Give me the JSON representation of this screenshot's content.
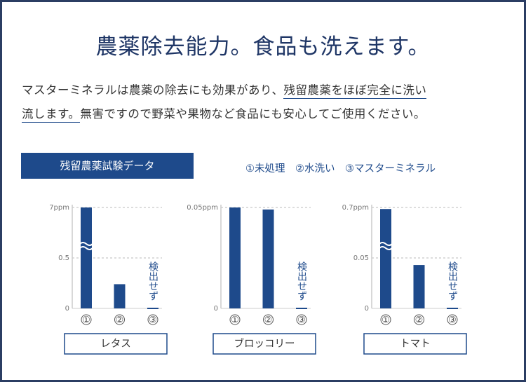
{
  "title": "農薬除去能力。食品も洗えます。",
  "body": {
    "lines": [
      [
        {
          "text": "マスターミネラルは農薬の除去にも効果があり、"
        },
        {
          "text": "残留農薬をほぼ完全に洗い",
          "highlight": true
        }
      ],
      [
        {
          "text": "流します。",
          "highlight": true
        },
        {
          "text": "無害ですので野菜や果物など食品にも安心してご使用ください。"
        }
      ]
    ]
  },
  "data_label": "残留農薬試験データ",
  "legend": "①未処理　②水洗い　③マスターミネラル",
  "chart_data": [
    {
      "type": "bar",
      "title": "レタス",
      "categories": [
        "①",
        "②",
        "③"
      ],
      "values": [
        7,
        0.24,
        0
      ],
      "annotation": "検出せず",
      "ylim": [
        0,
        7
      ],
      "yticks": [
        0,
        0.5,
        {
          "value": 7,
          "label": "7ppm"
        }
      ],
      "axis_break": true,
      "grid": true,
      "color": "#1e4a8b"
    },
    {
      "type": "bar",
      "title": "ブロッコリー",
      "categories": [
        "①",
        "②",
        "③"
      ],
      "values": [
        0.05,
        0.049,
        0
      ],
      "annotation": "検出せず",
      "ylim": [
        0,
        0.05
      ],
      "yticks": [
        0,
        {
          "value": 0.05,
          "label": "0.05ppm"
        }
      ],
      "axis_break": false,
      "grid": true,
      "color": "#1e4a8b"
    },
    {
      "type": "bar",
      "title": "トマト",
      "categories": [
        "①",
        "②",
        "③"
      ],
      "values": [
        0.68,
        0.043,
        0
      ],
      "annotation": "検出せず",
      "ylim": [
        0,
        0.7
      ],
      "yticks": [
        0,
        0.05,
        {
          "value": 0.7,
          "label": "0.7ppm"
        }
      ],
      "axis_break": true,
      "grid": true,
      "color": "#1e4a8b"
    }
  ]
}
